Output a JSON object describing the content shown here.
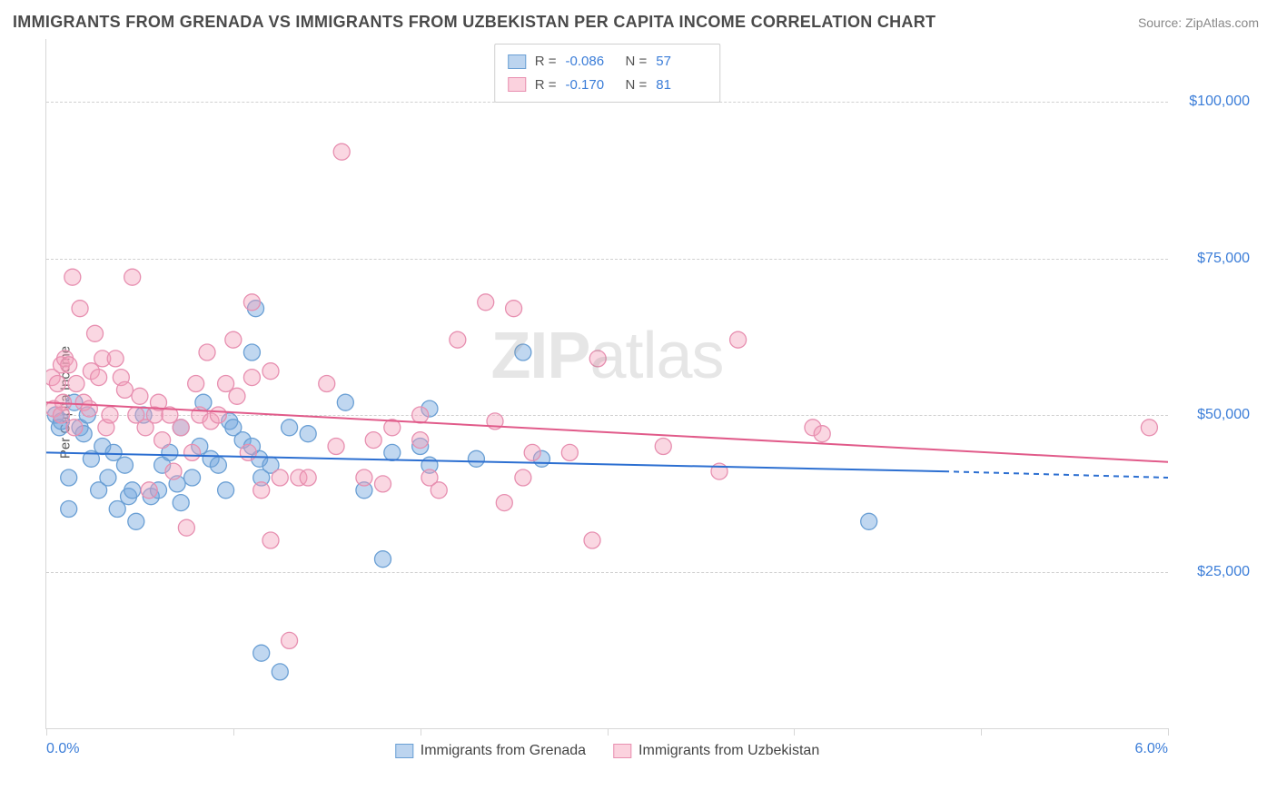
{
  "title": "IMMIGRANTS FROM GRENADA VS IMMIGRANTS FROM UZBEKISTAN PER CAPITA INCOME CORRELATION CHART",
  "source": "Source: ZipAtlas.com",
  "watermark_a": "ZIP",
  "watermark_b": "atlas",
  "chart": {
    "type": "scatter",
    "y_label": "Per Capita Income",
    "xlim": [
      0.0,
      6.0
    ],
    "ylim": [
      0,
      110000
    ],
    "x_ticks": [
      0.0,
      1.0,
      2.0,
      3.0,
      4.0,
      5.0,
      6.0
    ],
    "x_tick_labels": {
      "0": "0.0%",
      "6": "6.0%"
    },
    "y_gridlines": [
      25000,
      50000,
      75000,
      100000
    ],
    "y_tick_labels": [
      "$25,000",
      "$50,000",
      "$75,000",
      "$100,000"
    ],
    "grid_color": "#d0d0d0",
    "axis_color": "#d7d7d7",
    "background_color": "#ffffff",
    "tick_label_color": "#3b7dd8",
    "series": [
      {
        "name": "Immigrants from Grenada",
        "color_fill": "rgba(116,166,222,0.45)",
        "color_stroke": "#6a9fd4",
        "swatch_fill": "#bcd4ef",
        "swatch_stroke": "#6a9fd4",
        "r_value": "-0.086",
        "n_value": "57",
        "marker_radius": 9,
        "trend": {
          "x1": 0.0,
          "y1": 44000,
          "x2": 4.8,
          "y2": 41000,
          "ext_x2": 6.0,
          "ext_y2": 40000,
          "color": "#2c6fd1",
          "width": 2
        },
        "points": [
          [
            0.05,
            50000
          ],
          [
            0.07,
            48000
          ],
          [
            0.08,
            49000
          ],
          [
            0.12,
            40000
          ],
          [
            0.12,
            35000
          ],
          [
            0.15,
            52000
          ],
          [
            0.18,
            48000
          ],
          [
            0.2,
            47000
          ],
          [
            0.22,
            50000
          ],
          [
            0.24,
            43000
          ],
          [
            0.28,
            38000
          ],
          [
            0.3,
            45000
          ],
          [
            0.33,
            40000
          ],
          [
            0.36,
            44000
          ],
          [
            0.38,
            35000
          ],
          [
            0.42,
            42000
          ],
          [
            0.44,
            37000
          ],
          [
            0.46,
            38000
          ],
          [
            0.48,
            33000
          ],
          [
            0.52,
            50000
          ],
          [
            0.56,
            37000
          ],
          [
            0.6,
            38000
          ],
          [
            0.62,
            42000
          ],
          [
            0.66,
            44000
          ],
          [
            0.7,
            39000
          ],
          [
            0.72,
            36000
          ],
          [
            0.72,
            48000
          ],
          [
            0.78,
            40000
          ],
          [
            0.82,
            45000
          ],
          [
            0.84,
            52000
          ],
          [
            0.88,
            43000
          ],
          [
            0.92,
            42000
          ],
          [
            0.96,
            38000
          ],
          [
            0.98,
            49000
          ],
          [
            1.0,
            48000
          ],
          [
            1.05,
            46000
          ],
          [
            1.1,
            45000
          ],
          [
            1.14,
            43000
          ],
          [
            1.1,
            60000
          ],
          [
            1.12,
            67000
          ],
          [
            1.15,
            40000
          ],
          [
            1.15,
            12000
          ],
          [
            1.2,
            42000
          ],
          [
            1.25,
            9000
          ],
          [
            1.3,
            48000
          ],
          [
            1.4,
            47000
          ],
          [
            1.6,
            52000
          ],
          [
            1.7,
            38000
          ],
          [
            1.8,
            27000
          ],
          [
            1.85,
            44000
          ],
          [
            2.0,
            45000
          ],
          [
            2.05,
            42000
          ],
          [
            2.05,
            51000
          ],
          [
            2.3,
            43000
          ],
          [
            2.55,
            60000
          ],
          [
            2.65,
            43000
          ],
          [
            4.4,
            33000
          ]
        ]
      },
      {
        "name": "Immigrants from Uzbekistan",
        "color_fill": "rgba(242,160,185,0.42)",
        "color_stroke": "#e78fb0",
        "swatch_fill": "#fbd2de",
        "swatch_stroke": "#e88fb0",
        "r_value": "-0.170",
        "n_value": "81",
        "marker_radius": 9,
        "trend": {
          "x1": 0.0,
          "y1": 52000,
          "x2": 6.0,
          "y2": 42500,
          "color": "#e15b8a",
          "width": 2
        },
        "points": [
          [
            0.03,
            56000
          ],
          [
            0.04,
            51000
          ],
          [
            0.06,
            55000
          ],
          [
            0.08,
            58000
          ],
          [
            0.09,
            52000
          ],
          [
            0.1,
            59000
          ],
          [
            0.12,
            58000
          ],
          [
            0.14,
            72000
          ],
          [
            0.15,
            48000
          ],
          [
            0.16,
            55000
          ],
          [
            0.18,
            67000
          ],
          [
            0.2,
            52000
          ],
          [
            0.23,
            51000
          ],
          [
            0.24,
            57000
          ],
          [
            0.26,
            63000
          ],
          [
            0.28,
            56000
          ],
          [
            0.3,
            59000
          ],
          [
            0.32,
            48000
          ],
          [
            0.34,
            50000
          ],
          [
            0.37,
            59000
          ],
          [
            0.4,
            56000
          ],
          [
            0.42,
            54000
          ],
          [
            0.46,
            72000
          ],
          [
            0.48,
            50000
          ],
          [
            0.5,
            53000
          ],
          [
            0.53,
            48000
          ],
          [
            0.55,
            38000
          ],
          [
            0.58,
            50000
          ],
          [
            0.6,
            52000
          ],
          [
            0.62,
            46000
          ],
          [
            0.66,
            50000
          ],
          [
            0.68,
            41000
          ],
          [
            0.72,
            48000
          ],
          [
            0.75,
            32000
          ],
          [
            0.78,
            44000
          ],
          [
            0.8,
            55000
          ],
          [
            0.82,
            50000
          ],
          [
            0.86,
            60000
          ],
          [
            0.88,
            49000
          ],
          [
            0.92,
            50000
          ],
          [
            0.96,
            55000
          ],
          [
            1.0,
            62000
          ],
          [
            1.02,
            53000
          ],
          [
            1.08,
            44000
          ],
          [
            1.1,
            56000
          ],
          [
            1.1,
            68000
          ],
          [
            1.15,
            38000
          ],
          [
            1.2,
            57000
          ],
          [
            1.2,
            30000
          ],
          [
            1.25,
            40000
          ],
          [
            1.3,
            14000
          ],
          [
            1.35,
            40000
          ],
          [
            1.4,
            40000
          ],
          [
            1.5,
            55000
          ],
          [
            1.55,
            45000
          ],
          [
            1.58,
            92000
          ],
          [
            1.7,
            40000
          ],
          [
            1.75,
            46000
          ],
          [
            1.8,
            39000
          ],
          [
            1.85,
            48000
          ],
          [
            2.0,
            46000
          ],
          [
            2.0,
            50000
          ],
          [
            2.05,
            40000
          ],
          [
            2.1,
            38000
          ],
          [
            2.2,
            62000
          ],
          [
            2.35,
            68000
          ],
          [
            2.4,
            49000
          ],
          [
            2.45,
            36000
          ],
          [
            2.5,
            67000
          ],
          [
            2.55,
            40000
          ],
          [
            2.6,
            44000
          ],
          [
            2.8,
            44000
          ],
          [
            2.95,
            59000
          ],
          [
            2.92,
            30000
          ],
          [
            3.3,
            45000
          ],
          [
            3.6,
            41000
          ],
          [
            3.7,
            62000
          ],
          [
            4.1,
            48000
          ],
          [
            4.15,
            47000
          ],
          [
            5.9,
            48000
          ],
          [
            0.08,
            50000
          ]
        ]
      }
    ]
  },
  "stats_labels": {
    "r": "R =",
    "n": "N ="
  },
  "legend": {
    "items": [
      "Immigrants from Grenada",
      "Immigrants from Uzbekistan"
    ]
  }
}
